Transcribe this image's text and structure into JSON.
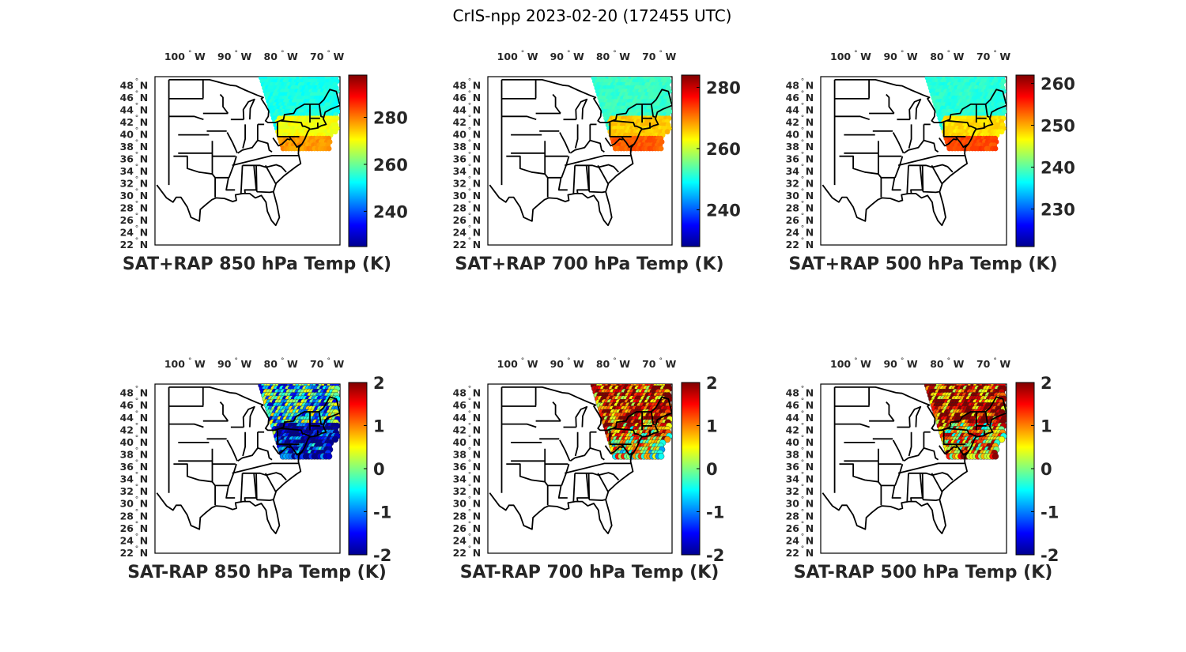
{
  "figure": {
    "title": "CrIS-npp 2023-02-20 (172455 UTC)"
  },
  "colormap": "jet",
  "colors": {
    "jet": [
      "#00008f",
      "#0000ff",
      "#0080ff",
      "#00ffff",
      "#80ff80",
      "#ffff00",
      "#ff8000",
      "#ff0000",
      "#800000"
    ],
    "map_lines": "#000000",
    "background": "#ffffff"
  },
  "map_extent": {
    "lon": [
      -107,
      -67
    ],
    "lat": [
      22,
      49.5
    ]
  },
  "lon_ticks": [
    {
      "value": -100,
      "label": "100",
      "deg": "°",
      "hem": "W"
    },
    {
      "value": -90,
      "label": "90",
      "deg": "°",
      "hem": "W"
    },
    {
      "value": -80,
      "label": "80",
      "deg": "°",
      "hem": "W"
    },
    {
      "value": -70,
      "label": "70",
      "deg": "°",
      "hem": "W"
    }
  ],
  "lat_ticks": [
    {
      "value": 48,
      "label": "48",
      "hem": "N"
    },
    {
      "value": 46,
      "label": "46",
      "hem": "N"
    },
    {
      "value": 44,
      "label": "44",
      "hem": "N"
    },
    {
      "value": 42,
      "label": "42",
      "hem": "N"
    },
    {
      "value": 40,
      "label": "40",
      "hem": "N"
    },
    {
      "value": 38,
      "label": "38",
      "hem": "N"
    },
    {
      "value": 36,
      "label": "36",
      "hem": "N"
    },
    {
      "value": 34,
      "label": "34",
      "hem": "N"
    },
    {
      "value": 32,
      "label": "32",
      "hem": "N"
    },
    {
      "value": 30,
      "label": "30",
      "hem": "N"
    },
    {
      "value": 28,
      "label": "28",
      "hem": "N"
    },
    {
      "value": 26,
      "label": "26",
      "hem": "N"
    },
    {
      "value": 24,
      "label": "24",
      "hem": "N"
    },
    {
      "value": 22,
      "label": "22",
      "hem": "N"
    }
  ],
  "lat_deg_symbol": "°",
  "chart_data": [
    {
      "type": "scatter",
      "title": "SAT+RAP 850 hPa Temp (K)",
      "colorbar": {
        "range": [
          225,
          298
        ],
        "ticks": [
          240,
          260,
          280
        ],
        "tick_labels": [
          "240",
          "260",
          "280"
        ]
      },
      "footprint": {
        "lon_range": [
          -84,
          -67.5
        ],
        "lat_range": [
          37.5,
          49.3
        ],
        "base_value": 254,
        "south_value": 270,
        "far_south_value": 278
      }
    },
    {
      "type": "scatter",
      "title": "SAT+RAP 700 hPa Temp (K)",
      "colorbar": {
        "range": [
          228,
          284
        ],
        "ticks": [
          240,
          260,
          280
        ],
        "tick_labels": [
          "240",
          "260",
          "280"
        ]
      },
      "footprint": {
        "lon_range": [
          -84,
          -67.5
        ],
        "lat_range": [
          37.5,
          49.3
        ],
        "base_value": 252,
        "south_value": 266,
        "far_south_value": 272
      }
    },
    {
      "type": "scatter",
      "title": "SAT+RAP 500 hPa Temp (K)",
      "colorbar": {
        "range": [
          221,
          262
        ],
        "ticks": [
          230,
          240,
          250,
          260
        ],
        "tick_labels": [
          "230",
          "240",
          "250",
          "260"
        ]
      },
      "footprint": {
        "lon_range": [
          -84,
          -67.5
        ],
        "lat_range": [
          37.5,
          49.3
        ],
        "base_value": 238,
        "south_value": 248,
        "far_south_value": 254
      }
    },
    {
      "type": "scatter",
      "title": "SAT-RAP 850 hPa Temp (K)",
      "colorbar": {
        "range": [
          -2,
          2
        ],
        "ticks": [
          -2,
          -1,
          0,
          1,
          2
        ],
        "tick_labels": [
          "-2",
          "-1",
          "0",
          "1",
          "2"
        ]
      },
      "footprint": {
        "lon_range": [
          -84,
          -67.5
        ],
        "lat_range": [
          37.5,
          49.3
        ],
        "base_value": -0.6,
        "south_value": -2,
        "far_south_value": -1.6
      }
    },
    {
      "type": "scatter",
      "title": "SAT-RAP 700 hPa Temp (K)",
      "colorbar": {
        "range": [
          -2,
          2
        ],
        "ticks": [
          -2,
          -1,
          0,
          1,
          2
        ],
        "tick_labels": [
          "-2",
          "-1",
          "0",
          "1",
          "2"
        ]
      },
      "footprint": {
        "lon_range": [
          -84,
          -67.5
        ],
        "lat_range": [
          37.5,
          49.3
        ],
        "base_value": 1.4,
        "south_value": 0.8,
        "far_south_value": 0.4
      }
    },
    {
      "type": "scatter",
      "title": "SAT-RAP 500 hPa Temp (K)",
      "colorbar": {
        "range": [
          -2,
          2
        ],
        "ticks": [
          -2,
          -1,
          0,
          1,
          2
        ],
        "tick_labels": [
          "-2",
          "-1",
          "0",
          "1",
          "2"
        ]
      },
      "footprint": {
        "lon_range": [
          -84,
          -67.5
        ],
        "lat_range": [
          37.5,
          49.3
        ],
        "base_value": 1.5,
        "south_value": 0.6,
        "far_south_value": 0.9
      }
    }
  ]
}
